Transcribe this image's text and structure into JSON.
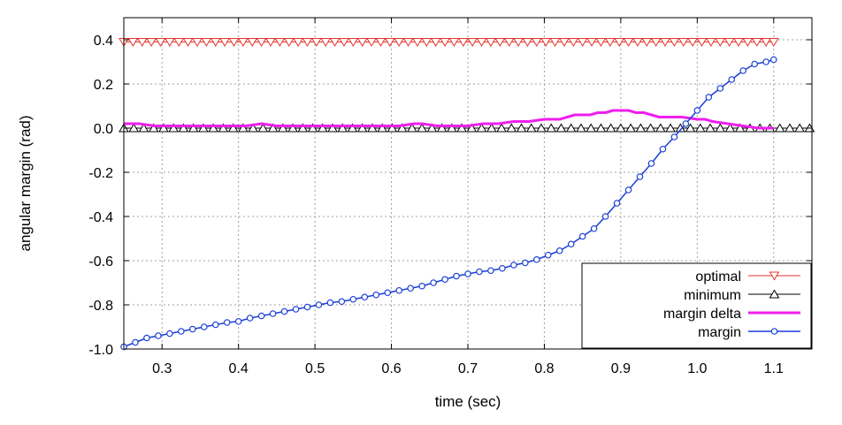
{
  "chart_data": {
    "type": "line",
    "title": "",
    "xlabel": "time (sec)",
    "ylabel": "angular margin (rad)",
    "xlim": [
      0.25,
      1.15
    ],
    "ylim": [
      -1.0,
      0.5
    ],
    "grid": true,
    "legend_position": "bottom-right",
    "x_ticks": [
      0.3,
      0.4,
      0.5,
      0.6,
      0.7,
      0.8,
      0.9,
      1.0,
      1.1
    ],
    "x_tick_labels": [
      "0.3",
      "0.4",
      "0.5",
      "0.6",
      "0.7",
      "0.8",
      "0.9",
      "1.0",
      "1.1"
    ],
    "y_ticks": [
      -1.0,
      -0.8,
      -0.6,
      -0.4,
      -0.2,
      0.0,
      0.2,
      0.4
    ],
    "y_tick_labels": [
      "-1.0",
      "-0.8",
      "-0.6",
      "-0.4",
      "-0.2",
      "0.0",
      "0.2",
      "0.4"
    ],
    "series": [
      {
        "name": "optimal",
        "color": "#e8332c",
        "marker": "triangle-down",
        "line_width": 1,
        "x": [
          0.25,
          0.262,
          0.274,
          0.286,
          0.298,
          0.31,
          0.322,
          0.334,
          0.346,
          0.358,
          0.37,
          0.382,
          0.394,
          0.406,
          0.418,
          0.43,
          0.442,
          0.454,
          0.466,
          0.478,
          0.49,
          0.502,
          0.514,
          0.526,
          0.538,
          0.55,
          0.562,
          0.574,
          0.586,
          0.598,
          0.61,
          0.622,
          0.634,
          0.646,
          0.658,
          0.67,
          0.682,
          0.694,
          0.706,
          0.718,
          0.73,
          0.742,
          0.754,
          0.766,
          0.778,
          0.79,
          0.802,
          0.814,
          0.826,
          0.838,
          0.85,
          0.862,
          0.874,
          0.886,
          0.898,
          0.91,
          0.922,
          0.934,
          0.946,
          0.958,
          0.97,
          0.982,
          0.994,
          1.006,
          1.018,
          1.03,
          1.042,
          1.054,
          1.066,
          1.078,
          1.09,
          1.1
        ],
        "y": [
          0.39,
          0.39,
          0.39,
          0.39,
          0.39,
          0.39,
          0.39,
          0.39,
          0.39,
          0.39,
          0.39,
          0.39,
          0.39,
          0.39,
          0.39,
          0.39,
          0.39,
          0.39,
          0.39,
          0.39,
          0.39,
          0.39,
          0.39,
          0.39,
          0.39,
          0.39,
          0.39,
          0.39,
          0.39,
          0.39,
          0.39,
          0.39,
          0.39,
          0.39,
          0.39,
          0.39,
          0.39,
          0.39,
          0.39,
          0.39,
          0.39,
          0.39,
          0.39,
          0.39,
          0.39,
          0.39,
          0.39,
          0.39,
          0.39,
          0.39,
          0.39,
          0.39,
          0.39,
          0.39,
          0.39,
          0.39,
          0.39,
          0.39,
          0.39,
          0.39,
          0.39,
          0.39,
          0.39,
          0.39,
          0.39,
          0.39,
          0.39,
          0.39,
          0.39,
          0.39,
          0.39,
          0.39
        ]
      },
      {
        "name": "minimum",
        "color": "#000000",
        "marker": "triangle-up",
        "line_width": 1,
        "x": [
          0.25,
          0.263,
          0.276,
          0.289,
          0.302,
          0.315,
          0.328,
          0.341,
          0.354,
          0.367,
          0.38,
          0.393,
          0.406,
          0.419,
          0.432,
          0.445,
          0.458,
          0.471,
          0.484,
          0.497,
          0.51,
          0.523,
          0.536,
          0.549,
          0.562,
          0.575,
          0.588,
          0.601,
          0.614,
          0.627,
          0.64,
          0.653,
          0.666,
          0.679,
          0.692,
          0.705,
          0.718,
          0.731,
          0.744,
          0.757,
          0.77,
          0.783,
          0.796,
          0.809,
          0.822,
          0.835,
          0.848,
          0.861,
          0.874,
          0.887,
          0.9,
          0.913,
          0.926,
          0.939,
          0.952,
          0.965,
          0.978,
          0.991,
          1.004,
          1.017,
          1.03,
          1.043,
          1.056,
          1.069,
          1.082,
          1.095,
          1.108,
          1.121,
          1.134,
          1.147
        ],
        "y": [
          0,
          0,
          0,
          0,
          0,
          0,
          0,
          0,
          0,
          0,
          0,
          0,
          0,
          0,
          0,
          0,
          0,
          0,
          0,
          0,
          0,
          0,
          0,
          0,
          0,
          0,
          0,
          0,
          0,
          0,
          0,
          0,
          0,
          0,
          0,
          0,
          0,
          0,
          0,
          0,
          0,
          0,
          0,
          0,
          0,
          0,
          0,
          0,
          0,
          0,
          0,
          0,
          0,
          0,
          0,
          0,
          0,
          0,
          0,
          0,
          0,
          0,
          0,
          0,
          0,
          0,
          0,
          0,
          0,
          0
        ]
      },
      {
        "name": "margin delta",
        "color": "#ee1fee",
        "marker": "none",
        "line_width": 3,
        "x": [
          0.25,
          0.27,
          0.29,
          0.31,
          0.33,
          0.35,
          0.37,
          0.39,
          0.41,
          0.43,
          0.45,
          0.47,
          0.49,
          0.51,
          0.53,
          0.55,
          0.57,
          0.59,
          0.61,
          0.63,
          0.64,
          0.66,
          0.68,
          0.7,
          0.72,
          0.74,
          0.76,
          0.78,
          0.8,
          0.81,
          0.82,
          0.83,
          0.84,
          0.85,
          0.86,
          0.87,
          0.88,
          0.89,
          0.9,
          0.91,
          0.92,
          0.93,
          0.94,
          0.95,
          0.96,
          0.98,
          1.0,
          1.01,
          1.02,
          1.04,
          1.06,
          1.08,
          1.1
        ],
        "y": [
          0.02,
          0.02,
          0.01,
          0.01,
          0.01,
          0.01,
          0.01,
          0.01,
          0.01,
          0.02,
          0.01,
          0.01,
          0.01,
          0.01,
          0.01,
          0.01,
          0.01,
          0.01,
          0.01,
          0.02,
          0.02,
          0.01,
          0.01,
          0.01,
          0.02,
          0.02,
          0.03,
          0.03,
          0.04,
          0.04,
          0.04,
          0.05,
          0.06,
          0.06,
          0.06,
          0.07,
          0.07,
          0.08,
          0.08,
          0.08,
          0.07,
          0.07,
          0.06,
          0.05,
          0.05,
          0.05,
          0.04,
          0.04,
          0.03,
          0.02,
          0.01,
          0.0,
          0.0
        ]
      },
      {
        "name": "margin",
        "color": "#1a3fd6",
        "marker": "circle",
        "line_width": 1.5,
        "x": [
          0.25,
          0.265,
          0.28,
          0.295,
          0.31,
          0.325,
          0.34,
          0.355,
          0.37,
          0.385,
          0.4,
          0.415,
          0.43,
          0.445,
          0.46,
          0.475,
          0.49,
          0.505,
          0.52,
          0.535,
          0.55,
          0.565,
          0.58,
          0.595,
          0.61,
          0.625,
          0.64,
          0.655,
          0.67,
          0.685,
          0.7,
          0.715,
          0.73,
          0.745,
          0.76,
          0.775,
          0.79,
          0.805,
          0.82,
          0.835,
          0.85,
          0.865,
          0.88,
          0.895,
          0.91,
          0.925,
          0.94,
          0.955,
          0.97,
          0.985,
          1.0,
          1.015,
          1.03,
          1.045,
          1.06,
          1.075,
          1.09,
          1.1
        ],
        "y": [
          -0.99,
          -0.97,
          -0.95,
          -0.94,
          -0.93,
          -0.92,
          -0.91,
          -0.9,
          -0.89,
          -0.88,
          -0.875,
          -0.86,
          -0.85,
          -0.84,
          -0.83,
          -0.82,
          -0.81,
          -0.8,
          -0.79,
          -0.785,
          -0.775,
          -0.765,
          -0.755,
          -0.745,
          -0.735,
          -0.725,
          -0.715,
          -0.7,
          -0.685,
          -0.67,
          -0.66,
          -0.65,
          -0.645,
          -0.635,
          -0.62,
          -0.61,
          -0.595,
          -0.575,
          -0.555,
          -0.525,
          -0.49,
          -0.455,
          -0.4,
          -0.34,
          -0.28,
          -0.22,
          -0.16,
          -0.095,
          -0.04,
          0.02,
          0.08,
          0.14,
          0.18,
          0.22,
          0.26,
          0.29,
          0.3,
          0.31
        ]
      }
    ]
  }
}
